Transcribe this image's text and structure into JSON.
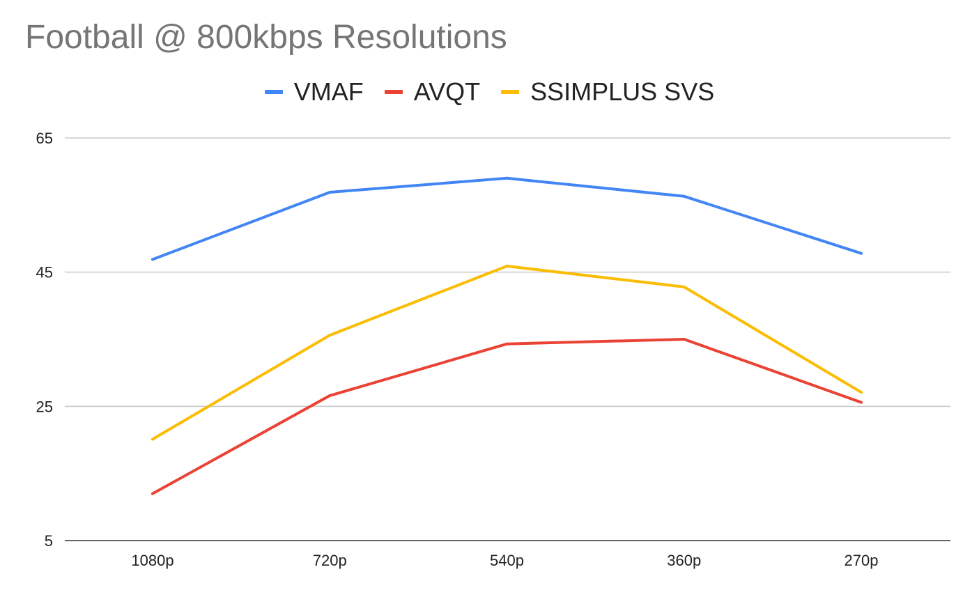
{
  "chart_data": {
    "type": "line",
    "title": "Football @ 800kbps Resolutions",
    "xlabel": "",
    "ylabel": "",
    "categories": [
      "1080p",
      "720p",
      "540p",
      "360p",
      "270p"
    ],
    "series": [
      {
        "name": "VMAF",
        "color": "#4285f4",
        "values": [
          46.9,
          56.9,
          59.0,
          56.3,
          47.8
        ]
      },
      {
        "name": "AVQT",
        "color": "#ea4335",
        "values": [
          12.0,
          26.6,
          34.3,
          35.0,
          25.6
        ]
      },
      {
        "name": "SSIMPLUS SVS",
        "color": "#fbbc04",
        "values": [
          20.1,
          35.6,
          45.9,
          42.8,
          27.1
        ]
      }
    ],
    "ylim": [
      5,
      65
    ],
    "yticks": [
      "65",
      "45",
      "25",
      "5"
    ],
    "grid": true,
    "legend_position": "top-center"
  }
}
